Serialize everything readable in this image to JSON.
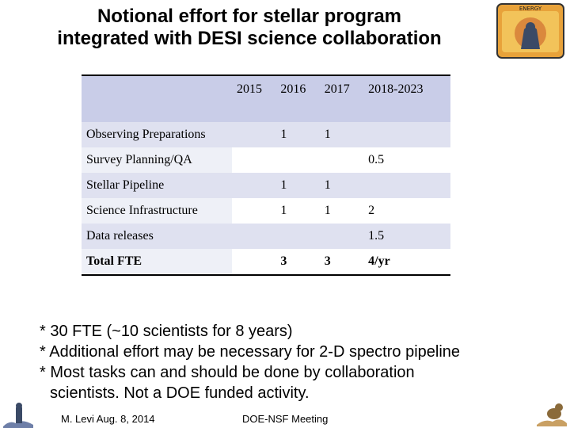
{
  "title_line1": "Notional effort for stellar program",
  "title_line2": "integrated with DESI science collaboration",
  "logo_text": "ENERGY",
  "table": {
    "headers": [
      "",
      "2015",
      "2016",
      "2017",
      "2018-2023"
    ],
    "rows": [
      {
        "label": "Observing Preparations",
        "c2015": "",
        "c2016": "1",
        "c2017": "1",
        "c2018": ""
      },
      {
        "label": "Survey Planning/QA",
        "c2015": "",
        "c2016": "",
        "c2017": "",
        "c2018": "0.5"
      },
      {
        "label": "Stellar Pipeline",
        "c2015": "",
        "c2016": "1",
        "c2017": "1",
        "c2018": ""
      },
      {
        "label": "Science Infrastructure",
        "c2015": "",
        "c2016": "1",
        "c2017": "1",
        "c2018": "2"
      },
      {
        "label": "Data releases",
        "c2015": "",
        "c2016": "",
        "c2017": "",
        "c2018": "1.5"
      },
      {
        "label": "Total FTE",
        "c2015": "",
        "c2016": "3",
        "c2017": "3",
        "c2018": "4/yr"
      }
    ]
  },
  "notes": [
    "* 30 FTE   (~10 scientists for 8 years)",
    "* Additional effort may be necessary for 2-D spectro pipeline",
    "* Most tasks can and should be done by collaboration",
    "scientists.  Not a DOE funded activity."
  ],
  "footer": {
    "author_date": "M. Levi  Aug. 8, 2014",
    "meeting": "DOE-NSF Meeting"
  }
}
